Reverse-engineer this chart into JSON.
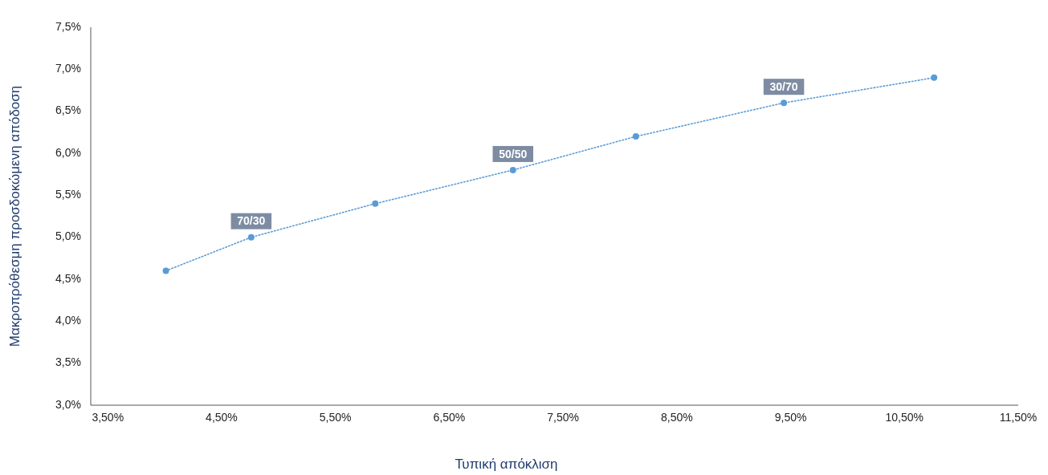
{
  "chart_data": {
    "type": "scatter",
    "xlabel": "Τυπική απόκλιση",
    "ylabel": "Μακροπρόθεσμη προσδοκώμενη απόδοση",
    "x": [
      4.01,
      4.76,
      5.85,
      7.06,
      8.14,
      9.44,
      10.76
    ],
    "series": [
      {
        "color": "#5b9bd5",
        "values": [
          4.6,
          5.0,
          5.4,
          5.8,
          6.2,
          6.6,
          6.9
        ],
        "marker": "circle"
      },
      {
        "type": "line",
        "color": "#5b9bd5",
        "line_style": "dotted",
        "marker": "none",
        "x": [
          4.01,
          4.76,
          5.85,
          7.06,
          8.14,
          9.44,
          10.76
        ],
        "values": [
          4.6,
          5.0,
          5.4,
          5.8,
          6.2,
          6.6,
          6.9
        ]
      }
    ],
    "annotations": [
      {
        "text": "70/30",
        "x": 4.76,
        "y": 5.0
      },
      {
        "text": "50/50",
        "x": 7.06,
        "y": 5.8
      },
      {
        "text": "30/70",
        "x": 9.44,
        "y": 6.6
      }
    ],
    "xlim": [
      3.35,
      11.5
    ],
    "ylim": [
      3.0,
      7.5
    ],
    "xticks": [
      {
        "value": 3.5,
        "label": "3,50%"
      },
      {
        "value": 4.5,
        "label": "4,50%"
      },
      {
        "value": 5.5,
        "label": "5,50%"
      },
      {
        "value": 6.5,
        "label": "6,50%"
      },
      {
        "value": 7.5,
        "label": "7,50%"
      },
      {
        "value": 8.5,
        "label": "8,50%"
      },
      {
        "value": 9.5,
        "label": "9,50%"
      },
      {
        "value": 10.5,
        "label": "10,50%"
      },
      {
        "value": 11.5,
        "label": "11,50%"
      }
    ],
    "yticks": [
      {
        "value": 3.0,
        "label": "3,0%"
      },
      {
        "value": 3.5,
        "label": "3,5%"
      },
      {
        "value": 4.0,
        "label": "4,0%"
      },
      {
        "value": 4.5,
        "label": "4,5%"
      },
      {
        "value": 5.0,
        "label": "5,0%"
      },
      {
        "value": 5.5,
        "label": "5,5%"
      },
      {
        "value": 6.0,
        "label": "6,0%"
      },
      {
        "value": 6.5,
        "label": "6,5%"
      },
      {
        "value": 7.0,
        "label": "7,0%"
      },
      {
        "value": 7.5,
        "label": "7,5%"
      }
    ],
    "grid": false
  }
}
